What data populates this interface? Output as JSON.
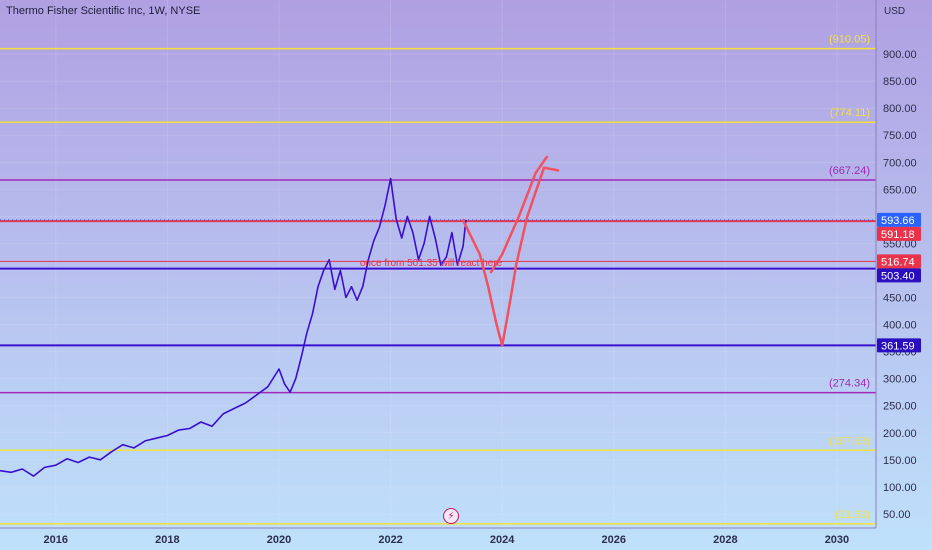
{
  "chart": {
    "title": "Thermo Fisher Scientific Inc, 1W, NYSE",
    "currency": "USD",
    "flash_icon": "lightning-bolt-icon"
  },
  "chart_data": {
    "type": "line",
    "title": "Thermo Fisher Scientific Inc, 1W, NYSE",
    "xlim": [
      2015.0,
      2030.7
    ],
    "ylim": [
      24,
      1000
    ],
    "x_ticks": [
      2016,
      2018,
      2020,
      2022,
      2024,
      2026,
      2028,
      2030
    ],
    "y_ticks": [
      50,
      100,
      150,
      200,
      250,
      300,
      350,
      400,
      450,
      500,
      550,
      600,
      650,
      700,
      750,
      800,
      850,
      900
    ],
    "y_tick_labels": [
      "50.00",
      "100.00",
      "150.00",
      "200.00",
      "250.00",
      "300.00",
      "350.00",
      "400.00",
      "450.00",
      "500.00",
      "550.00",
      "600.00",
      "650.00",
      "700.00",
      "750.00",
      "800.00",
      "850.00",
      "900.00"
    ],
    "series": [
      {
        "color": "#3a10d0",
        "points": [
          [
            2015.0,
            130
          ],
          [
            2015.2,
            127
          ],
          [
            2015.4,
            133
          ],
          [
            2015.6,
            120
          ],
          [
            2015.8,
            136
          ],
          [
            2016.0,
            140
          ],
          [
            2016.2,
            152
          ],
          [
            2016.4,
            145
          ],
          [
            2016.6,
            155
          ],
          [
            2016.8,
            150
          ],
          [
            2017.0,
            165
          ],
          [
            2017.2,
            178
          ],
          [
            2017.4,
            172
          ],
          [
            2017.6,
            185
          ],
          [
            2017.8,
            190
          ],
          [
            2018.0,
            195
          ],
          [
            2018.2,
            205
          ],
          [
            2018.4,
            208
          ],
          [
            2018.6,
            220
          ],
          [
            2018.8,
            212
          ],
          [
            2019.0,
            235
          ],
          [
            2019.2,
            245
          ],
          [
            2019.4,
            255
          ],
          [
            2019.6,
            270
          ],
          [
            2019.8,
            285
          ],
          [
            2020.0,
            318
          ],
          [
            2020.1,
            290
          ],
          [
            2020.2,
            275
          ],
          [
            2020.3,
            300
          ],
          [
            2020.4,
            340
          ],
          [
            2020.5,
            385
          ],
          [
            2020.6,
            420
          ],
          [
            2020.7,
            470
          ],
          [
            2020.8,
            500
          ],
          [
            2020.9,
            520
          ],
          [
            2021.0,
            465
          ],
          [
            2021.1,
            500
          ],
          [
            2021.2,
            450
          ],
          [
            2021.3,
            470
          ],
          [
            2021.4,
            445
          ],
          [
            2021.5,
            470
          ],
          [
            2021.6,
            520
          ],
          [
            2021.7,
            555
          ],
          [
            2021.8,
            580
          ],
          [
            2021.9,
            620
          ],
          [
            2022.0,
            670
          ],
          [
            2022.1,
            595
          ],
          [
            2022.2,
            560
          ],
          [
            2022.3,
            600
          ],
          [
            2022.4,
            570
          ],
          [
            2022.5,
            520
          ],
          [
            2022.6,
            550
          ],
          [
            2022.7,
            600
          ],
          [
            2022.8,
            560
          ],
          [
            2022.9,
            510
          ],
          [
            2023.0,
            525
          ],
          [
            2023.1,
            570
          ],
          [
            2023.2,
            510
          ],
          [
            2023.3,
            545
          ],
          [
            2023.35,
            593.66
          ]
        ]
      }
    ],
    "levels": [
      {
        "value": 910.05,
        "label": "(910.05)",
        "color": "#f5e13a"
      },
      {
        "value": 774.11,
        "label": "(774.11)",
        "color": "#f5e13a"
      },
      {
        "value": 667.24,
        "label": "(667.24)",
        "color": "#a02ab8"
      },
      {
        "value": 274.34,
        "label": "(274.34)",
        "color": "#a02ab8"
      },
      {
        "value": 167.63,
        "label": "(167.63)",
        "color": "#f5e13a"
      },
      {
        "value": 31.69,
        "label": "(31.69)",
        "color": "#f5e13a"
      }
    ],
    "hlines": [
      {
        "value": 591.18,
        "color": "#e8334a",
        "width": 2
      },
      {
        "value": 516.74,
        "color": "#e8334a",
        "width": 1
      },
      {
        "value": 503.4,
        "color": "#3a10d0",
        "width": 2
      },
      {
        "value": 361.59,
        "color": "#3a10d0",
        "width": 2
      }
    ],
    "price_tags": [
      {
        "value": 593.66,
        "label": "593.66",
        "bg": "#2962ff",
        "fg": "#ffffff"
      },
      {
        "value": 591.18,
        "label": "591.18",
        "bg": "#e8334a",
        "fg": "#ffffff"
      },
      {
        "value": 516.74,
        "label": "516.74",
        "bg": "#e8334a",
        "fg": "#ffffff"
      },
      {
        "value": 503.4,
        "label": "503.40",
        "bg": "#2a0fc0",
        "fg": "#ffffff"
      },
      {
        "value": 361.59,
        "label": "361.59",
        "bg": "#2a0fc0",
        "fg": "#ffffff"
      }
    ],
    "current_price": 593.66,
    "annotation": {
      "text": "once from 501.35 will react here",
      "color": "#e8334a",
      "x": 2021.45,
      "y": 508
    },
    "projection_paths": [
      [
        [
          2023.3,
          593
        ],
        [
          2023.6,
          530
        ],
        [
          2023.75,
          470
        ],
        [
          2023.9,
          400
        ],
        [
          2024.0,
          361
        ],
        [
          2024.12,
          430
        ],
        [
          2024.25,
          510
        ],
        [
          2024.45,
          600
        ],
        [
          2024.75,
          690
        ],
        [
          2025.0,
          685
        ]
      ],
      [
        [
          2023.8,
          497
        ],
        [
          2024.0,
          530
        ],
        [
          2024.3,
          600
        ],
        [
          2024.6,
          680
        ],
        [
          2024.8,
          710
        ]
      ]
    ]
  }
}
